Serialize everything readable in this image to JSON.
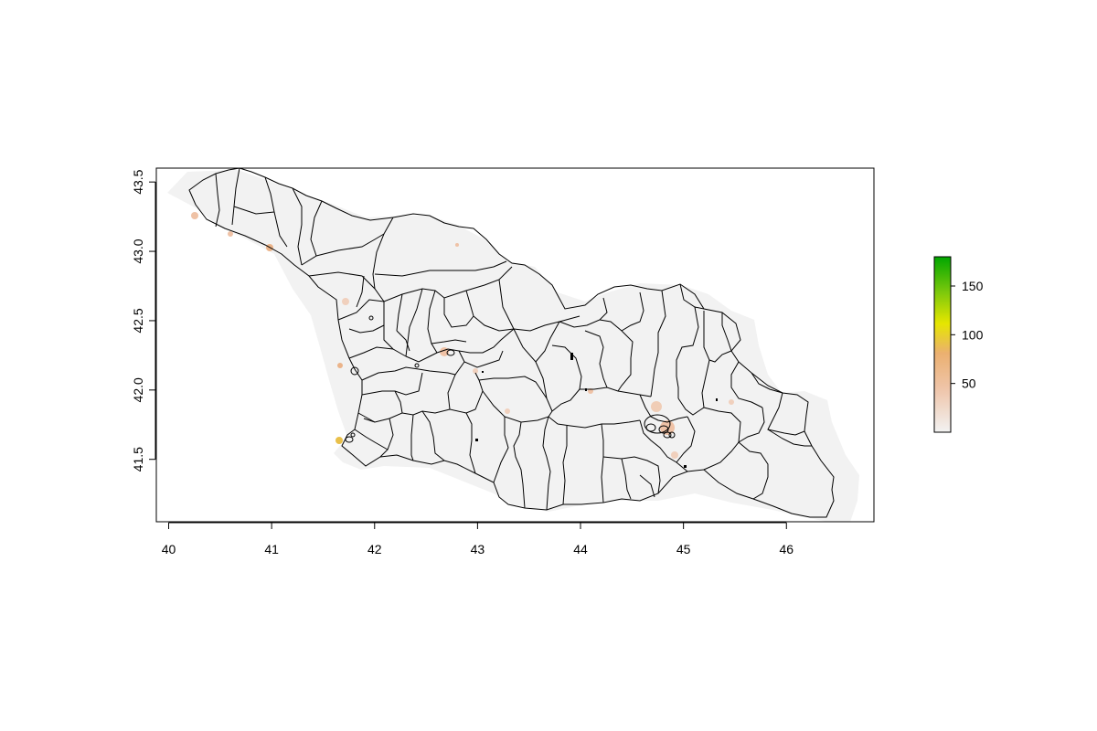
{
  "map": {
    "x_ticks": [
      "40",
      "41",
      "42",
      "43",
      "44",
      "45",
      "46"
    ],
    "y_ticks": [
      "41.5",
      "42.0",
      "42.5",
      "43.0",
      "43.5"
    ],
    "x_range": [
      39.88,
      46.85
    ],
    "y_range": [
      41.05,
      43.6
    ],
    "raster_background_color": "#f2f2f2",
    "boundary_color": "#000000"
  },
  "legend": {
    "labels": [
      "50",
      "100",
      "150"
    ],
    "range": [
      0,
      180
    ],
    "colors": [
      "#f2f2f2",
      "#ecb176",
      "#e6e600",
      "#1fa612",
      "#00a600"
    ]
  }
}
